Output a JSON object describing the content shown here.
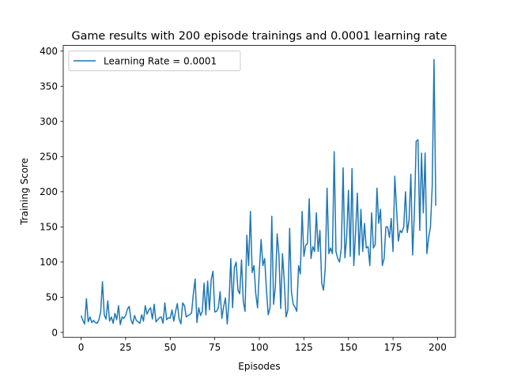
{
  "chart_data": {
    "type": "line",
    "title": "Game results with 200 episode trainings and 0.0001 learning rate",
    "xlabel": "Episodes",
    "ylabel": "Training Score",
    "xlim": [
      -10,
      210
    ],
    "ylim": [
      -7,
      408
    ],
    "xticks": [
      0,
      25,
      50,
      75,
      100,
      125,
      150,
      175,
      200
    ],
    "yticks": [
      0,
      50,
      100,
      150,
      200,
      250,
      300,
      350,
      400
    ],
    "grid": false,
    "legend_position": "top-left",
    "series": [
      {
        "name": "Learning Rate = 0.0001",
        "color": "#1f77b4",
        "x": [
          0,
          1,
          2,
          3,
          4,
          5,
          6,
          7,
          8,
          9,
          10,
          11,
          12,
          13,
          14,
          15,
          16,
          17,
          18,
          19,
          20,
          21,
          22,
          23,
          24,
          25,
          26,
          27,
          28,
          29,
          30,
          31,
          32,
          33,
          34,
          35,
          36,
          37,
          38,
          39,
          40,
          41,
          42,
          43,
          44,
          45,
          46,
          47,
          48,
          49,
          50,
          51,
          52,
          53,
          54,
          55,
          56,
          57,
          58,
          59,
          60,
          61,
          62,
          63,
          64,
          65,
          66,
          67,
          68,
          69,
          70,
          71,
          72,
          73,
          74,
          75,
          76,
          77,
          78,
          79,
          80,
          81,
          82,
          83,
          84,
          85,
          86,
          87,
          88,
          89,
          90,
          91,
          92,
          93,
          94,
          95,
          96,
          97,
          98,
          99,
          100,
          101,
          102,
          103,
          104,
          105,
          106,
          107,
          108,
          109,
          110,
          111,
          112,
          113,
          114,
          115,
          116,
          117,
          118,
          119,
          120,
          121,
          122,
          123,
          124,
          125,
          126,
          127,
          128,
          129,
          130,
          131,
          132,
          133,
          134,
          135,
          136,
          137,
          138,
          139,
          140,
          141,
          142,
          143,
          144,
          145,
          146,
          147,
          148,
          149,
          150,
          151,
          152,
          153,
          154,
          155,
          156,
          157,
          158,
          159,
          160,
          161,
          162,
          163,
          164,
          165,
          166,
          167,
          168,
          169,
          170,
          171,
          172,
          173,
          174,
          175,
          176,
          177,
          178,
          179,
          180,
          181,
          182,
          183,
          184,
          185,
          186,
          187,
          188,
          189,
          190,
          191,
          192,
          193,
          194,
          195,
          196,
          197,
          198,
          199
        ],
        "y": [
          24,
          17,
          12,
          48,
          15,
          22,
          14,
          17,
          14,
          13,
          18,
          29,
          72,
          25,
          19,
          45,
          16,
          22,
          13,
          27,
          18,
          38,
          11,
          22,
          20,
          24,
          33,
          37,
          18,
          12,
          24,
          17,
          15,
          13,
          25,
          16,
          38,
          26,
          32,
          35,
          19,
          40,
          15,
          18,
          21,
          22,
          13,
          42,
          18,
          21,
          20,
          32,
          16,
          30,
          41,
          19,
          12,
          42,
          38,
          22,
          24,
          25,
          28,
          55,
          76,
          14,
          35,
          24,
          30,
          70,
          25,
          73,
          32,
          75,
          87,
          29,
          30,
          35,
          58,
          20,
          37,
          49,
          12,
          44,
          105,
          35,
          92,
          100,
          60,
          55,
          103,
          44,
          30,
          138,
          95,
          172,
          85,
          95,
          55,
          35,
          88,
          132,
          95,
          105,
          60,
          25,
          35,
          165,
          40,
          65,
          140,
          110,
          34,
          112,
          72,
          22,
          32,
          148,
          58,
          40,
          36,
          30,
          95,
          83,
          172,
          108,
          124,
          126,
          190,
          105,
          122,
          115,
          170,
          115,
          145,
          70,
          60,
          92,
          205,
          112,
          120,
          112,
          257,
          115,
          105,
          100,
          120,
          234,
          106,
          135,
          202,
          108,
          233,
          95,
          142,
          198,
          110,
          175,
          115,
          155,
          120,
          122,
          95,
          170,
          120,
          125,
          205,
          155,
          175,
          95,
          105,
          150,
          150,
          135,
          162,
          115,
          222,
          175,
          130,
          145,
          142,
          150,
          200,
          142,
          160,
          225,
          110,
          170,
          272,
          274,
          145,
          255,
          170,
          255,
          112,
          135,
          150,
          208,
          388,
          180
        ]
      }
    ]
  }
}
